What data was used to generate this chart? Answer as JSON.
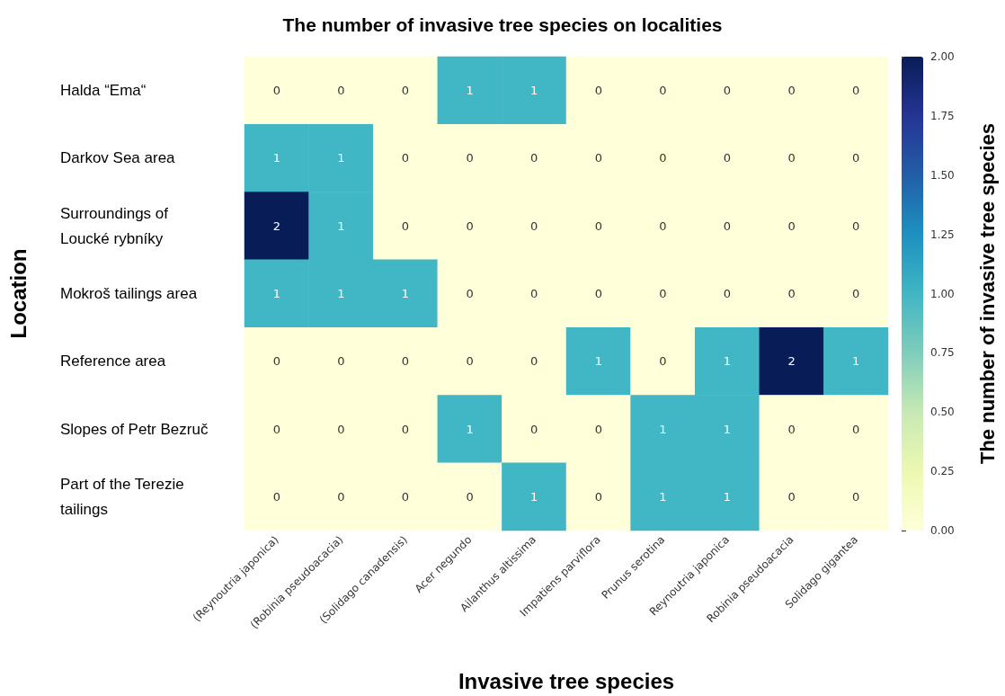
{
  "chart_data": {
    "type": "heatmap",
    "title": "The number of invasive tree species on localities",
    "xlabel": "Invasive tree species",
    "ylabel": "Location",
    "clabel": "The number of invasive tree species",
    "categories": [
      "(Reynoutria japonica)",
      "(Robinia pseudoacacia)",
      "(Solidago canadensis)",
      "Acer negundo",
      "Ailanthus altissima",
      "Impatiens parviflora",
      "Prunus serotina",
      "Reynoutria japonica",
      "Robinia pseudoacacia",
      "Solidago gigantea"
    ],
    "y_categories": [
      "Halda “Ema“",
      "Darkov Sea area",
      "Surroundings of Loucké rybníky",
      "Mokroš tailings area",
      "Reference area",
      "Slopes of Petr Bezruč",
      "Part of the Terezie tailings"
    ],
    "cells": [
      [
        0,
        0,
        0,
        1,
        1,
        0,
        0,
        0,
        0,
        0
      ],
      [
        1,
        1,
        0,
        0,
        0,
        0,
        0,
        0,
        0,
        0
      ],
      [
        2,
        1,
        0,
        0,
        0,
        0,
        0,
        0,
        0,
        0
      ],
      [
        1,
        1,
        1,
        0,
        0,
        0,
        0,
        0,
        0,
        0
      ],
      [
        0,
        0,
        0,
        0,
        0,
        1,
        0,
        1,
        2,
        1
      ],
      [
        0,
        0,
        0,
        1,
        0,
        0,
        1,
        1,
        0,
        0
      ],
      [
        0,
        0,
        0,
        0,
        1,
        0,
        1,
        1,
        0,
        0
      ]
    ],
    "data_labels": true,
    "clim": [
      0,
      2
    ],
    "cticks": [
      {
        "value": 0,
        "label": "0.00"
      },
      {
        "value": 0.25,
        "label": "0.25"
      },
      {
        "value": 0.5,
        "label": "0.50"
      },
      {
        "value": 0.75,
        "label": "0.75"
      },
      {
        "value": 1,
        "label": "1.00"
      },
      {
        "value": 1.25,
        "label": "1.25"
      },
      {
        "value": 1.5,
        "label": "1.50"
      },
      {
        "value": 1.75,
        "label": "1.75"
      },
      {
        "value": 2,
        "label": "2.00"
      }
    ]
  }
}
